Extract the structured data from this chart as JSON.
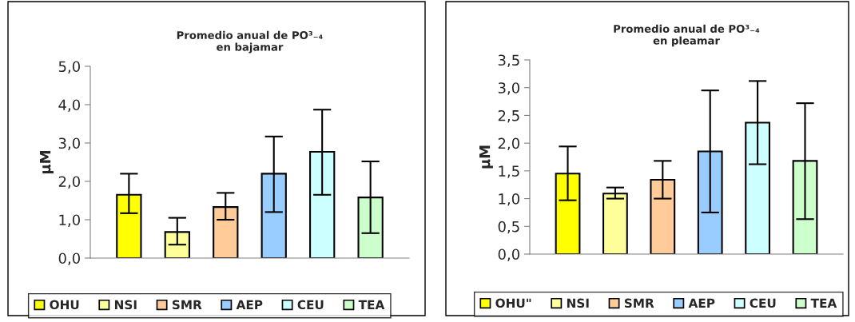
{
  "chart_data": [
    {
      "type": "bar",
      "title": "Promedio anual de PO³₋₄\nen bajamar",
      "ylabel": "µM",
      "categories": [
        null,
        null,
        null,
        null,
        null,
        null
      ],
      "series": [
        {
          "name": "OHU",
          "color": "#ffff00",
          "values": [
            1.65,
            null,
            null,
            null,
            null,
            null
          ],
          "errors": [
            [
              1.17,
              2.2
            ],
            null,
            null,
            null,
            null,
            null
          ]
        },
        {
          "name": "NSI",
          "color": "#ffff99",
          "values": [
            null,
            0.68,
            null,
            null,
            null,
            null
          ],
          "errors": [
            null,
            [
              0.35,
              1.05
            ],
            null,
            null,
            null,
            null
          ]
        },
        {
          "name": "SMR",
          "color": "#ffcc99",
          "values": [
            null,
            null,
            1.33,
            null,
            null,
            null
          ],
          "errors": [
            null,
            null,
            [
              1.0,
              1.7
            ],
            null,
            null,
            null
          ]
        },
        {
          "name": "AEP",
          "color": "#99ccff",
          "values": [
            null,
            null,
            null,
            2.2,
            null,
            null
          ],
          "errors": [
            null,
            null,
            null,
            [
              1.2,
              3.17
            ],
            null,
            null
          ]
        },
        {
          "name": "CEU",
          "color": "#ccffff",
          "values": [
            null,
            null,
            null,
            null,
            2.77,
            null
          ],
          "errors": [
            null,
            null,
            null,
            null,
            [
              1.65,
              3.87
            ],
            null
          ]
        },
        {
          "name": "TEA",
          "color": "#ccffcc",
          "values": [
            null,
            null,
            null,
            null,
            null,
            1.58
          ],
          "errors": [
            null,
            null,
            null,
            null,
            null,
            [
              0.65,
              2.52
            ]
          ]
        }
      ],
      "ylim": [
        0,
        5
      ],
      "yticks": [
        {
          "value": 0,
          "label": "0,0"
        },
        {
          "value": 1,
          "label": "1,0"
        },
        {
          "value": 2,
          "label": "2,0"
        },
        {
          "value": 3,
          "label": "3,0"
        },
        {
          "value": 4,
          "label": "4,0"
        },
        {
          "value": 5,
          "label": "5,0"
        }
      ],
      "grid": false,
      "legend": "bottom"
    },
    {
      "type": "bar",
      "title": "Promedio anual de PO³₋₄\nen pleamar",
      "ylabel": "µM",
      "categories": [
        null,
        null,
        null,
        null,
        null,
        null
      ],
      "series": [
        {
          "name": "OHU\"",
          "color": "#ffff00",
          "values": [
            1.45,
            null,
            null,
            null,
            null,
            null
          ],
          "errors": [
            [
              0.97,
              1.94
            ],
            null,
            null,
            null,
            null,
            null
          ]
        },
        {
          "name": "NSI",
          "color": "#ffff99",
          "values": [
            null,
            1.09,
            null,
            null,
            null,
            null
          ],
          "errors": [
            null,
            [
              1.0,
              1.2
            ],
            null,
            null,
            null,
            null
          ]
        },
        {
          "name": "SMR",
          "color": "#ffcc99",
          "values": [
            null,
            null,
            1.34,
            null,
            null,
            null
          ],
          "errors": [
            null,
            null,
            [
              1.0,
              1.68
            ],
            null,
            null,
            null
          ]
        },
        {
          "name": "AEP",
          "color": "#99ccff",
          "values": [
            null,
            null,
            null,
            1.85,
            null,
            null
          ],
          "errors": [
            null,
            null,
            null,
            [
              0.75,
              2.95
            ],
            null,
            null
          ]
        },
        {
          "name": "CEU",
          "color": "#ccffff",
          "values": [
            null,
            null,
            null,
            null,
            2.37,
            null
          ],
          "errors": [
            null,
            null,
            null,
            null,
            [
              1.62,
              3.12
            ],
            null
          ]
        },
        {
          "name": "TEA",
          "color": "#ccffcc",
          "values": [
            null,
            null,
            null,
            null,
            null,
            1.68
          ],
          "errors": [
            null,
            null,
            null,
            null,
            null,
            [
              0.63,
              2.72
            ]
          ]
        }
      ],
      "ylim": [
        0,
        3.5
      ],
      "yticks": [
        {
          "value": 0,
          "label": "0,0"
        },
        {
          "value": 0.5,
          "label": "0,5"
        },
        {
          "value": 1,
          "label": "1,0"
        },
        {
          "value": 1.5,
          "label": "1,5"
        },
        {
          "value": 2,
          "label": "2,0"
        },
        {
          "value": 2.5,
          "label": "2,5"
        },
        {
          "value": 3,
          "label": "3,0"
        },
        {
          "value": 3.5,
          "label": "3,5"
        }
      ],
      "grid": false,
      "legend": "bottom"
    }
  ]
}
